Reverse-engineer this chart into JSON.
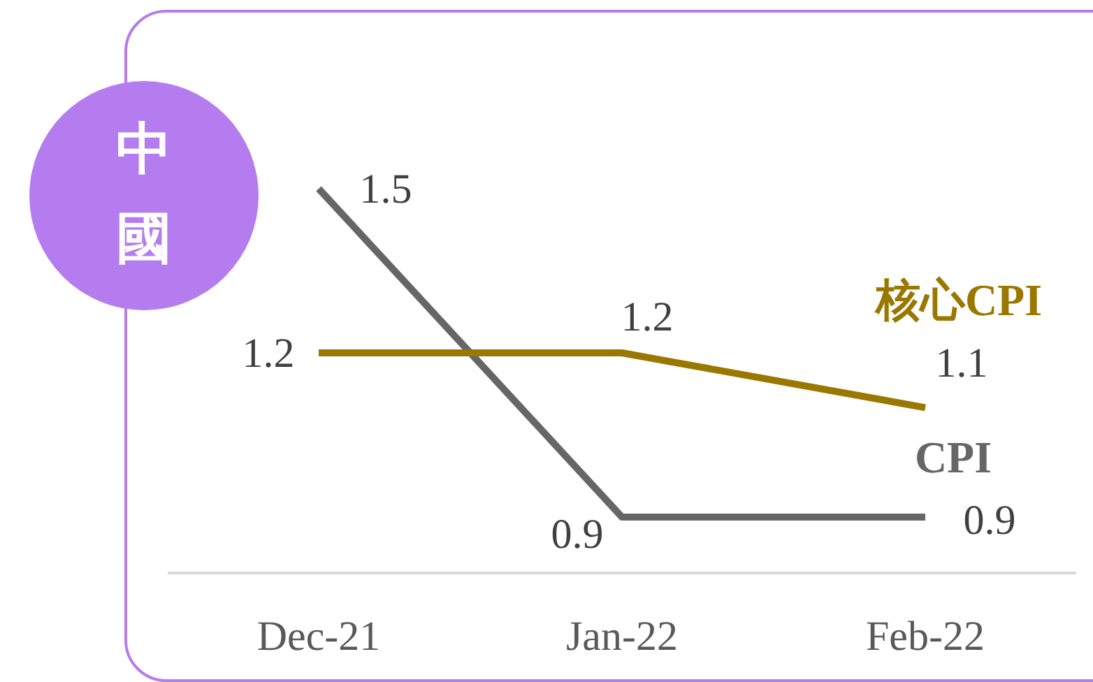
{
  "chart_data": {
    "type": "line",
    "title": "中國",
    "categories": [
      "Dec-21",
      "Jan-22",
      "Feb-22"
    ],
    "series": [
      {
        "name": "CPI",
        "color": "#666666",
        "values": [
          1.5,
          0.9,
          0.9
        ]
      },
      {
        "name": "核心CPI",
        "color": "#9a7800",
        "values": [
          1.2,
          1.2,
          1.1
        ]
      }
    ],
    "data_labels": true
  }
}
